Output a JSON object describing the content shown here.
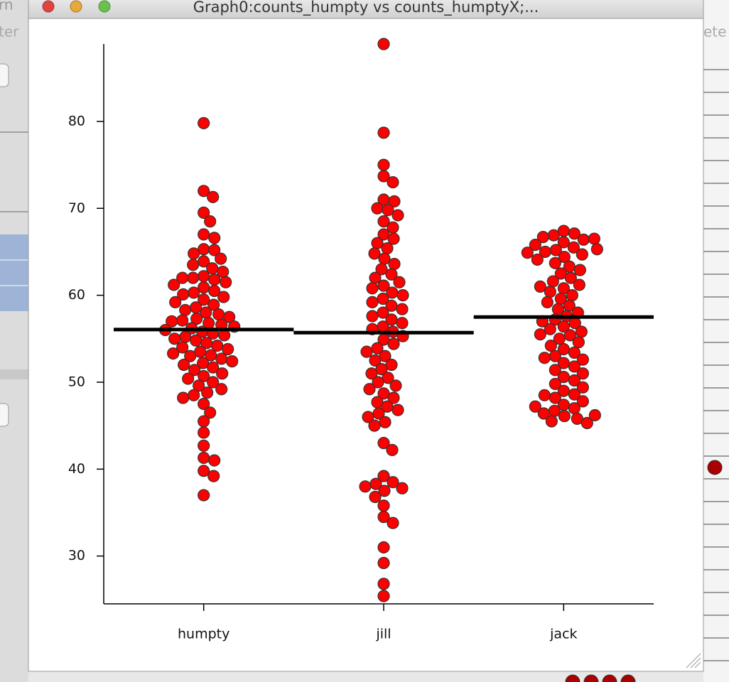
{
  "window_title": "Graph0:counts_humpty vs counts_humptyX;...",
  "background_fragments": [
    "rn",
    "ter",
    "ete"
  ],
  "chart_data": {
    "type": "beeswarm",
    "categories": [
      "humpty",
      "jill",
      "jack"
    ],
    "color": "#ff0000",
    "mean_color": "#000000",
    "ylim": [
      24.5,
      88.9
    ],
    "yticks": [
      30,
      40,
      50,
      60,
      70,
      80
    ],
    "groups": [
      {
        "values": [
          79.8,
          72,
          71.3,
          69.5,
          68.5,
          67,
          66.6,
          65.3,
          65.2,
          64.8,
          64.2,
          63.9,
          63.5,
          63.1,
          62.7,
          62.2,
          62,
          62,
          61.8,
          61.5,
          61.2,
          60.9,
          60.5,
          60.3,
          60.1,
          59.8,
          59.5,
          59.2,
          58.9,
          58.6,
          58.3,
          58,
          57.8,
          57.5,
          57.3,
          57.1,
          57,
          56.8,
          56.6,
          56.4,
          56.2,
          56,
          55.8,
          55.6,
          55.4,
          55.2,
          55,
          54.8,
          54.5,
          54.2,
          54,
          53.8,
          53.5,
          53.3,
          53.1,
          53,
          52.7,
          52.4,
          52.2,
          52,
          51.7,
          51.4,
          51,
          50.7,
          50.4,
          50,
          49.6,
          49.2,
          48.8,
          48.5,
          48.2,
          47.5,
          46.5,
          45.5,
          44.2,
          42.7,
          41.3,
          41,
          39.8,
          39.2,
          37
        ],
        "mean": 56.06
      },
      {
        "values": [
          88.9,
          78.7,
          75,
          73.7,
          73,
          71,
          70.8,
          70,
          69.8,
          69.2,
          68.5,
          67.8,
          67,
          66.5,
          66,
          65.4,
          64.8,
          64.2,
          63.6,
          63,
          62.4,
          62,
          61.5,
          61.1,
          60.8,
          60.3,
          60,
          59.6,
          59.2,
          58.8,
          58.4,
          58,
          57.6,
          57.2,
          56.8,
          56.4,
          56.1,
          55.8,
          55.3,
          54.9,
          54.4,
          53.9,
          53.5,
          53,
          52.5,
          52,
          51.5,
          51,
          50.5,
          50,
          49.6,
          49.2,
          48.7,
          48.2,
          47.7,
          47.2,
          46.8,
          46.4,
          46,
          45.4,
          45,
          43,
          42.2,
          39.2,
          38.5,
          38.3,
          38,
          37.8,
          37.5,
          36.8,
          35.8,
          34.5,
          33.8,
          31,
          29.2,
          26.8,
          25.4
        ],
        "mean": 55.7
      },
      {
        "values": [
          67.4,
          67.1,
          66.9,
          66.7,
          66.4,
          66.1,
          65.8,
          65.5,
          65.2,
          65,
          64.7,
          64.4,
          64.1,
          63.7,
          63.3,
          62.9,
          62.5,
          62,
          61.6,
          61.2,
          60.8,
          60.4,
          60,
          59.6,
          59.2,
          58.8,
          58.4,
          58,
          57.6,
          57.2,
          56.8,
          56.4,
          56.1,
          55.8,
          55.4,
          55,
          54.6,
          54.2,
          53.8,
          53.4,
          53,
          52.6,
          52.2,
          51.8,
          51.4,
          51,
          50.6,
          50.2,
          49.8,
          49.4,
          49,
          48.6,
          48.2,
          47.8,
          47.4,
          47,
          46.7,
          46.4,
          46.1,
          45.8,
          45.5,
          45.3,
          66.5,
          65.3,
          64.9,
          61,
          57,
          55.5,
          52.8,
          48.5,
          47.2,
          46.2
        ],
        "mean": 57.5
      }
    ]
  }
}
